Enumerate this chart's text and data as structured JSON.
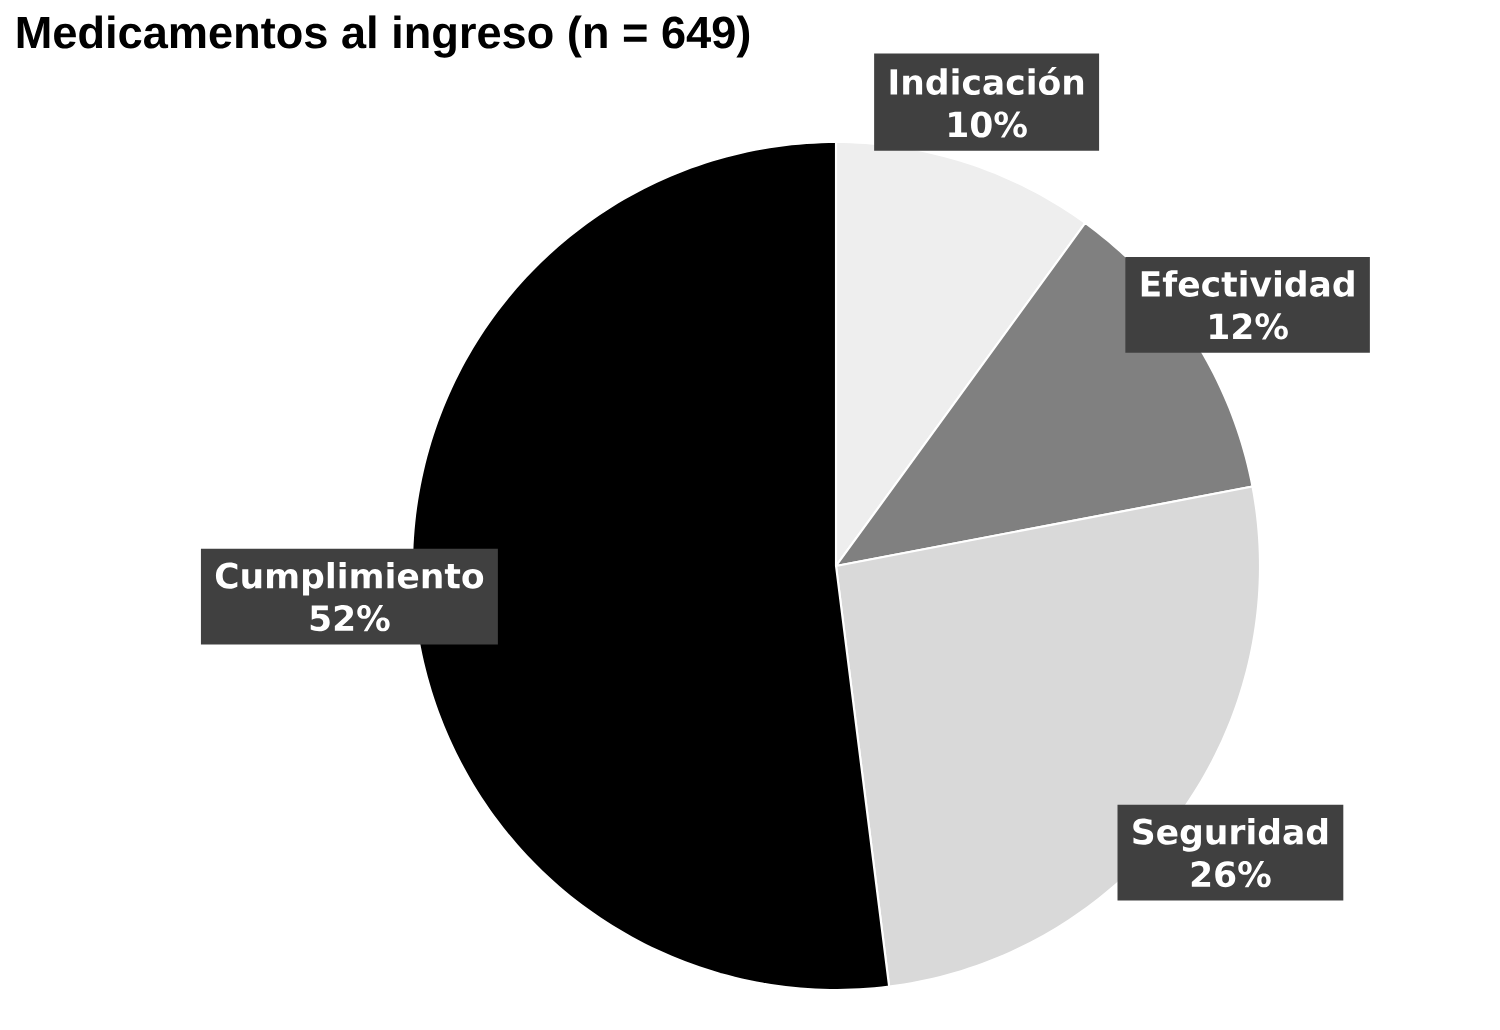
{
  "chart_data": {
    "type": "pie",
    "title": "Medicamentos al ingreso (n = 649)",
    "categories": [
      "Indicación",
      "Efectividad",
      "Seguridad",
      "Cumplimiento"
    ],
    "values": [
      10,
      12,
      26,
      52
    ],
    "value_labels": [
      "10%",
      "12%",
      "26%",
      "52%"
    ],
    "colors": [
      "#eeeeee",
      "#808080",
      "#d9d9d9",
      "#000000"
    ]
  }
}
